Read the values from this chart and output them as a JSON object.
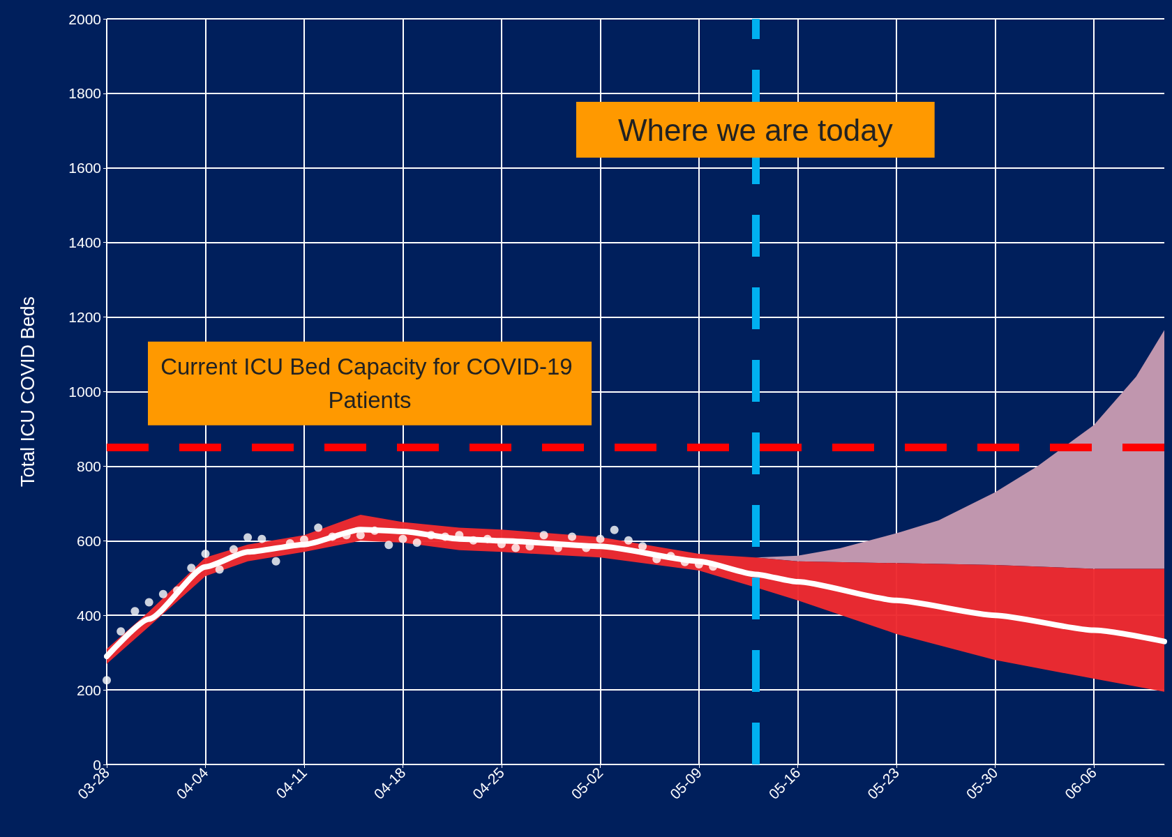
{
  "chart_data": {
    "type": "line",
    "ylabel": "Total ICU COVID Beds",
    "xlim": [
      "--03-28",
      "--06-11"
    ],
    "xticks": [
      {
        "value": "--03-28",
        "label": "03-28"
      },
      {
        "value": "--04-04",
        "label": "04-04"
      },
      {
        "value": "--04-11",
        "label": "04-11"
      },
      {
        "value": "--04-18",
        "label": "04-18"
      },
      {
        "value": "--04-25",
        "label": "04-25"
      },
      {
        "value": "--05-02",
        "label": "05-02"
      },
      {
        "value": "--05-09",
        "label": "05-09"
      },
      {
        "value": "--05-16",
        "label": "05-16"
      },
      {
        "value": "--05-23",
        "label": "05-23"
      },
      {
        "value": "--05-30",
        "label": "05-30"
      },
      {
        "value": "--06-06",
        "label": "06-06"
      }
    ],
    "ylim": [
      0,
      2000
    ],
    "yticks": [
      0,
      200,
      400,
      600,
      800,
      1000,
      1200,
      1400,
      1600,
      1800,
      2000
    ],
    "grid": true,
    "series": [
      {
        "type": "area",
        "color": "#c096ae",
        "x": [
          "--05-13",
          "--05-16",
          "--05-19",
          "--05-23",
          "--05-26",
          "--05-30",
          "--06-02",
          "--06-06",
          "--06-09",
          "--06-11"
        ],
        "values": [
          555,
          560,
          580,
          620,
          655,
          730,
          800,
          910,
          1040,
          1165
        ]
      },
      {
        "color": "#ffffff",
        "marker": "none",
        "line_style": "solid",
        "x": [
          "--03-28",
          "--03-31",
          "--04-04",
          "--04-07",
          "--04-11",
          "--04-15",
          "--04-18",
          "--04-22",
          "--04-25",
          "--05-02",
          "--05-09",
          "--05-13",
          "--05-16",
          "--05-23",
          "--05-30",
          "--06-06",
          "--06-11"
        ],
        "values": [
          290,
          390,
          530,
          570,
          590,
          630,
          625,
          605,
          600,
          585,
          545,
          510,
          490,
          440,
          400,
          360,
          330
        ],
        "lower": [
          270,
          370,
          505,
          545,
          570,
          600,
          595,
          575,
          570,
          555,
          520,
          475,
          440,
          350,
          280,
          230,
          195
        ],
        "upper": [
          310,
          410,
          555,
          590,
          615,
          670,
          650,
          635,
          630,
          610,
          565,
          555,
          545,
          540,
          535,
          525,
          525
        ]
      },
      {
        "type": "scatter",
        "color": "#ffffff",
        "marker": "circle",
        "x": [
          "--03-28",
          "--03-29",
          "--03-30",
          "--03-31",
          "--04-01",
          "--04-02",
          "--04-03",
          "--04-04",
          "--04-05",
          "--04-06",
          "--04-07",
          "--04-08",
          "--04-09",
          "--04-10",
          "--04-11",
          "--04-12",
          "--04-13",
          "--04-14",
          "--04-15",
          "--04-16",
          "--04-17",
          "--04-18",
          "--04-19",
          "--04-20",
          "--04-21",
          "--04-22",
          "--04-23",
          "--04-24",
          "--04-25",
          "--04-26",
          "--04-27",
          "--04-28",
          "--04-29",
          "--04-30",
          "--05-01",
          "--05-02",
          "--05-03",
          "--05-04",
          "--05-05",
          "--05-06",
          "--05-07",
          "--05-08",
          "--05-09",
          "--05-10"
        ],
        "values": [
          226,
          357,
          411,
          435,
          457,
          467,
          527,
          565,
          523,
          577,
          609,
          605,
          545,
          593,
          603,
          635,
          611,
          615,
          615,
          627,
          589,
          605,
          595,
          615,
          611,
          615,
          601,
          605,
          591,
          581,
          585,
          615,
          581,
          611,
          581,
          605,
          629,
          601,
          585,
          551,
          559,
          543,
          537,
          531
        ]
      }
    ],
    "ref_lines": [
      {
        "axis": "y",
        "value": 850,
        "label": "Current ICU Bed Capacity for COVID-19 Patients",
        "color": "#ff0000",
        "line_style": "dashed"
      },
      {
        "axis": "x",
        "value": "--05-13",
        "label": "Where we are today",
        "color": "#00b0f0",
        "line_style": "dashed"
      }
    ]
  }
}
